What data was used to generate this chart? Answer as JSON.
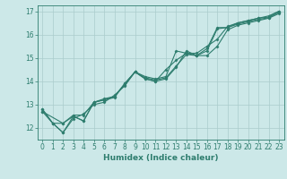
{
  "xlabel": "Humidex (Indice chaleur)",
  "ylabel": "",
  "bg_color": "#cce8e8",
  "line_color": "#2e7d6e",
  "grid_color": "#aacccc",
  "series": [
    [
      0,
      12.8
    ],
    [
      1,
      12.2
    ],
    [
      2,
      11.8
    ],
    [
      3,
      12.5
    ],
    [
      4,
      12.3
    ],
    [
      5,
      13.1
    ],
    [
      6,
      13.2
    ],
    [
      7,
      13.3
    ],
    [
      8,
      13.9
    ],
    [
      9,
      14.4
    ],
    [
      10,
      14.1
    ],
    [
      11,
      14.0
    ],
    [
      12,
      14.1
    ],
    [
      13,
      14.6
    ],
    [
      14,
      15.3
    ],
    [
      15,
      15.1
    ],
    [
      16,
      15.1
    ],
    [
      17,
      15.5
    ],
    [
      18,
      16.2
    ],
    [
      19,
      16.4
    ],
    [
      20,
      16.5
    ],
    [
      21,
      16.6
    ],
    [
      22,
      16.7
    ],
    [
      23,
      16.9
    ]
  ],
  "series2": [
    [
      0,
      12.8
    ],
    [
      1,
      12.2
    ],
    [
      2,
      11.8
    ],
    [
      3,
      12.4
    ],
    [
      4,
      12.6
    ],
    [
      5,
      13.0
    ],
    [
      6,
      13.1
    ],
    [
      7,
      13.4
    ],
    [
      8,
      13.8
    ],
    [
      9,
      14.4
    ],
    [
      10,
      14.1
    ],
    [
      11,
      14.0
    ],
    [
      12,
      14.5
    ],
    [
      13,
      14.9
    ],
    [
      14,
      15.2
    ],
    [
      15,
      15.1
    ],
    [
      16,
      15.4
    ],
    [
      17,
      16.3
    ],
    [
      18,
      16.3
    ],
    [
      19,
      16.5
    ],
    [
      20,
      16.6
    ],
    [
      21,
      16.7
    ],
    [
      22,
      16.75
    ],
    [
      23,
      17.0
    ]
  ],
  "series3": [
    [
      0,
      12.7
    ],
    [
      2,
      12.2
    ],
    [
      3,
      12.5
    ],
    [
      4,
      12.3
    ],
    [
      5,
      13.1
    ],
    [
      6,
      13.25
    ],
    [
      7,
      13.35
    ],
    [
      8,
      13.9
    ],
    [
      9,
      14.4
    ],
    [
      10,
      14.2
    ],
    [
      11,
      14.1
    ],
    [
      12,
      14.2
    ],
    [
      13,
      15.3
    ],
    [
      14,
      15.2
    ],
    [
      15,
      15.2
    ],
    [
      16,
      15.5
    ],
    [
      17,
      15.8
    ],
    [
      18,
      16.35
    ],
    [
      19,
      16.5
    ],
    [
      20,
      16.6
    ],
    [
      21,
      16.7
    ],
    [
      22,
      16.8
    ],
    [
      23,
      17.0
    ]
  ],
  "series4": [
    [
      0,
      12.7
    ],
    [
      1,
      12.2
    ],
    [
      2,
      12.2
    ],
    [
      3,
      12.55
    ],
    [
      4,
      12.55
    ],
    [
      5,
      13.1
    ],
    [
      6,
      13.2
    ],
    [
      7,
      13.35
    ],
    [
      8,
      13.85
    ],
    [
      9,
      14.4
    ],
    [
      10,
      14.15
    ],
    [
      11,
      14.05
    ],
    [
      12,
      14.15
    ],
    [
      13,
      14.65
    ],
    [
      14,
      15.15
    ],
    [
      15,
      15.1
    ],
    [
      16,
      15.3
    ],
    [
      17,
      16.25
    ],
    [
      18,
      16.3
    ],
    [
      19,
      16.45
    ],
    [
      20,
      16.55
    ],
    [
      21,
      16.65
    ],
    [
      22,
      16.72
    ],
    [
      23,
      16.95
    ]
  ],
  "xlim": [
    -0.5,
    23.5
  ],
  "ylim": [
    11.5,
    17.25
  ],
  "yticks": [
    12,
    13,
    14,
    15,
    16,
    17
  ],
  "xticks": [
    0,
    1,
    2,
    3,
    4,
    5,
    6,
    7,
    8,
    9,
    10,
    11,
    12,
    13,
    14,
    15,
    16,
    17,
    18,
    19,
    20,
    21,
    22,
    23
  ],
  "marker": "D",
  "markersize": 1.5,
  "linewidth": 0.8,
  "xlabel_fontsize": 6.5,
  "tick_fontsize": 5.5
}
